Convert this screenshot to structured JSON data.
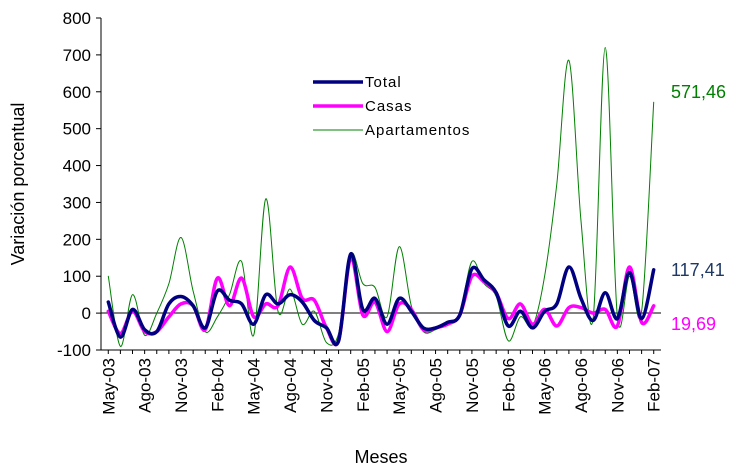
{
  "chart_data": {
    "type": "line",
    "xlabel": "Meses",
    "ylabel": "Variación porcentual",
    "ylim": [
      -100,
      800
    ],
    "yticks": [
      -100,
      0,
      100,
      200,
      300,
      400,
      500,
      600,
      700,
      800
    ],
    "x_tick_labels": [
      "May-03",
      "Ago-03",
      "Nov-03",
      "Feb-04",
      "May-04",
      "Ago-04",
      "Nov-04",
      "Feb-05",
      "May-05",
      "Ago-05",
      "Nov-05",
      "Feb-06",
      "May-06",
      "Ago-06",
      "Nov-06",
      "Feb-07"
    ],
    "months": [
      "May-03",
      "Jun-03",
      "Jul-03",
      "Ago-03",
      "Sep-03",
      "Oct-03",
      "Nov-03",
      "Dic-03",
      "Ene-04",
      "Feb-04",
      "Mar-04",
      "Abr-04",
      "May-04",
      "Jun-04",
      "Jul-04",
      "Ago-04",
      "Sep-04",
      "Oct-04",
      "Nov-04",
      "Dic-04",
      "Ene-05",
      "Feb-05",
      "Mar-05",
      "Abr-05",
      "May-05",
      "Jun-05",
      "Jul-05",
      "Ago-05",
      "Sep-05",
      "Oct-05",
      "Nov-05",
      "Dic-05",
      "Ene-06",
      "Feb-06",
      "Mar-06",
      "Abr-06",
      "May-06",
      "Jun-06",
      "Jul-06",
      "Ago-06",
      "Sep-06",
      "Oct-06",
      "Nov-06",
      "Dic-06",
      "Ene-07",
      "Feb-07"
    ],
    "legend_position": "inside-top-center",
    "series": [
      {
        "name": "Total",
        "color": "#000080",
        "values": [
          30,
          -65,
          10,
          -45,
          -50,
          25,
          45,
          20,
          -40,
          60,
          35,
          25,
          -30,
          50,
          25,
          50,
          30,
          -20,
          -40,
          -75,
          160,
          10,
          40,
          -30,
          40,
          5,
          -40,
          -40,
          -25,
          -5,
          120,
          90,
          55,
          -35,
          5,
          -40,
          5,
          25,
          125,
          40,
          -20,
          55,
          -15,
          110,
          -15,
          117.41
        ]
      },
      {
        "name": "Casas",
        "color": "#FF00FF",
        "values": [
          5,
          -55,
          5,
          -50,
          -50,
          -10,
          25,
          20,
          -45,
          95,
          20,
          95,
          -10,
          25,
          20,
          125,
          40,
          35,
          -40,
          -75,
          150,
          -5,
          30,
          -50,
          25,
          10,
          -45,
          -40,
          -30,
          -5,
          100,
          85,
          55,
          -15,
          25,
          -30,
          10,
          -35,
          15,
          15,
          0,
          10,
          -35,
          125,
          -25,
          19.69
        ]
      },
      {
        "name": "Apartamentos",
        "color": "#008000",
        "values": [
          100,
          -90,
          50,
          -60,
          0,
          80,
          205,
          60,
          -50,
          -10,
          50,
          140,
          -60,
          310,
          5,
          65,
          -30,
          5,
          -80,
          -55,
          160,
          80,
          70,
          -10,
          180,
          20,
          -50,
          -45,
          -25,
          0,
          140,
          80,
          45,
          -75,
          -10,
          -35,
          100,
          350,
          685,
          250,
          -15,
          720,
          -10,
          100,
          5,
          571.46
        ]
      }
    ],
    "end_labels": [
      {
        "text": "571,46",
        "series": "Apartamentos",
        "color": "#008000"
      },
      {
        "text": "117,41",
        "series": "Total",
        "color": "#1F3864"
      },
      {
        "text": "19,69",
        "series": "Casas",
        "color": "#FF00FF"
      }
    ]
  }
}
